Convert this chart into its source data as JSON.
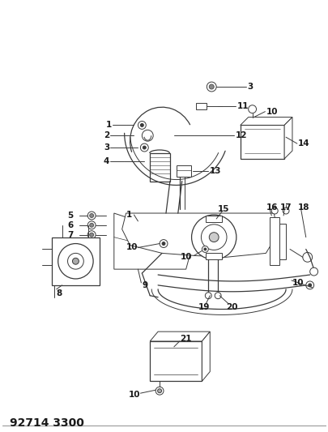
{
  "title": "92714 3300",
  "bg_color": "#ffffff",
  "line_color": "#3a3a3a",
  "label_color": "#1a1a1a",
  "fig_width": 4.06,
  "fig_height": 5.33,
  "dpi": 100
}
